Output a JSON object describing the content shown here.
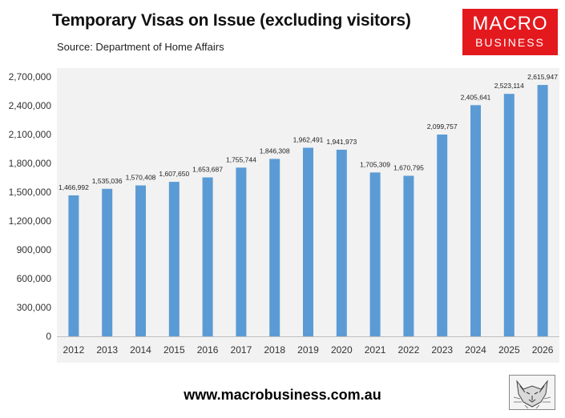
{
  "header": {
    "title": "Temporary Visas on Issue (excluding visitors)",
    "subtitle": "Source: Department of Home Affairs"
  },
  "logo": {
    "line1": "MACRO",
    "line2": "BUSINESS",
    "color": "#e3191e"
  },
  "footer": {
    "website": "www.macrobusiness.com.au",
    "mascot_icon": "wolf-sketch-icon"
  },
  "chart_data": {
    "type": "bar",
    "title": "Temporary Visas on Issue (excluding visitors)",
    "categories": [
      "2012",
      "2013",
      "2014",
      "2015",
      "2016",
      "2017",
      "2018",
      "2019",
      "2020",
      "2021",
      "2022",
      "2023",
      "2024",
      "2025",
      "2026"
    ],
    "values": [
      1466992,
      1535036,
      1570408,
      1607650,
      1653687,
      1755744,
      1846308,
      1962491,
      1941973,
      1705309,
      1670795,
      2099757,
      2405641,
      2523114,
      2615947
    ],
    "data_labels": [
      "1,466,992",
      "1,535,036",
      "1,570,408",
      "1,607,650",
      "1,653,687",
      "1,755,744",
      "1,846,308",
      "1,962,491",
      "1,941,973",
      "1,705,309",
      "1,670,795",
      "2,099,757",
      "2,405,641",
      "2,523,114",
      "2,615,947"
    ],
    "y_ticks": [
      0,
      300000,
      600000,
      900000,
      1200000,
      1500000,
      1800000,
      2100000,
      2400000,
      2700000
    ],
    "y_tick_labels": [
      "0",
      "300,000",
      "600,000",
      "900,000",
      "1,200,000",
      "1,500,000",
      "1,800,000",
      "2,100,000",
      "2,400,000",
      "2,700,000"
    ],
    "ylim": [
      0,
      2700000
    ],
    "xlabel": "",
    "ylabel": "",
    "bar_color": "#5b9bd5",
    "plot_background": "#f2f2f2",
    "grid": false,
    "legend": "none"
  }
}
